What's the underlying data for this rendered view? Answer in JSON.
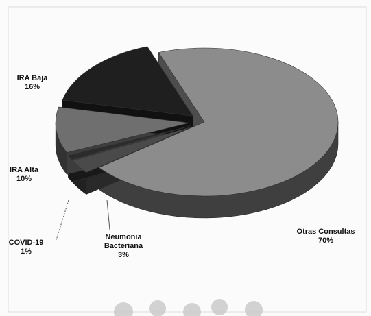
{
  "chart_data": {
    "type": "pie",
    "categories": [
      "Otras Consultas",
      "Neumonia Bacteriana",
      "COVID-19",
      "IRA Alta",
      "IRA Baja"
    ],
    "values": [
      70,
      3,
      1,
      10,
      16
    ],
    "value_labels": [
      "70%",
      "3%",
      "1%",
      "10%",
      "16%"
    ],
    "colors": [
      "#8c8c8c",
      "#4a4a4a",
      "#2b2b2b",
      "#6f6f6f",
      "#1f1f1f"
    ]
  }
}
